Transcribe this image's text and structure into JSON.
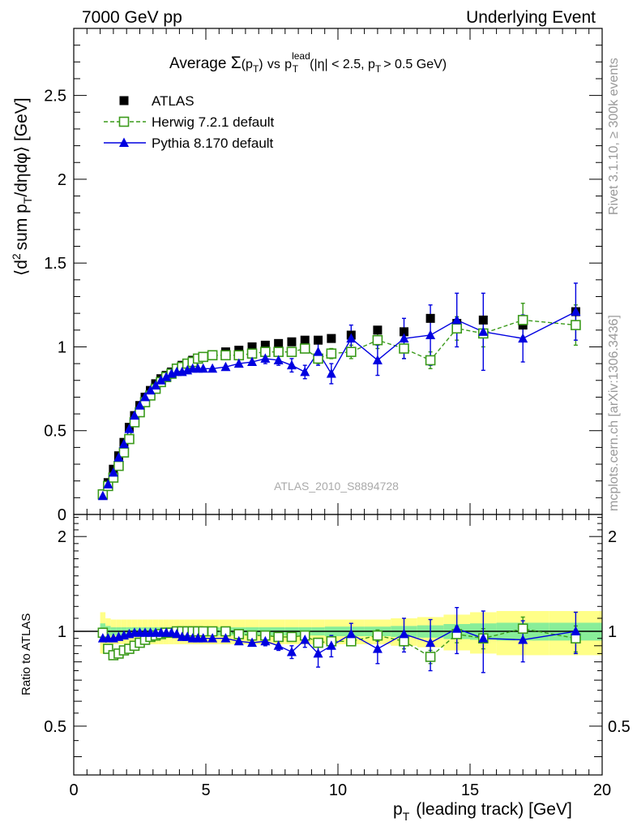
{
  "header": {
    "left": "7000 GeV pp",
    "right": "Underlying Event"
  },
  "side_labels": {
    "rivet": "Rivet 3.1.10, ≥ 300k events",
    "mcplots": "mcplots.cern.ch [arXiv:1306.3436]"
  },
  "watermark": "ATLAS_2010_S8894728",
  "colors": {
    "atlas": "#000000",
    "herwig": "#3a9a1a",
    "pythia": "#0000e0",
    "band_yellow": "#ffff88",
    "band_green": "#88ee99"
  },
  "chart_data": [
    {
      "type": "scatter",
      "title": "Average Σ(pT) vs pT lead (|η| < 2.5, pT > 0.5 GeV)",
      "title_parts": {
        "prefix": "Average",
        "sigma": "Σ",
        "sigma_arg_open": "(p",
        "sub_T": "T",
        "sigma_arg_close": ")",
        "vs": "vs",
        "p": "p",
        "sup_lead": "lead",
        "cut_open": "(|η| < 2.5, p",
        "cut_close": "> 0.5 GeV)"
      },
      "ylabel": "⟨d² sum pT/dηdφ⟩ [GeV]",
      "ylabel_parts": {
        "open": "⟨d",
        "sup_2": "2",
        "mid": "sum p",
        "sub_T": "T",
        "close": "/dηdφ⟩ [GeV]"
      },
      "xlim": [
        0,
        20
      ],
      "ylim": [
        0,
        2.9
      ],
      "yticks": [
        "0",
        "0.5",
        "1",
        "1.5",
        "2",
        "2.5"
      ],
      "legend_position": "top-left",
      "x": [
        1.1,
        1.3,
        1.5,
        1.7,
        1.9,
        2.1,
        2.3,
        2.5,
        2.7,
        2.9,
        3.1,
        3.3,
        3.5,
        3.7,
        3.9,
        4.1,
        4.3,
        4.5,
        4.7,
        4.9,
        5.25,
        5.75,
        6.25,
        6.75,
        7.25,
        7.75,
        8.25,
        8.75,
        9.25,
        9.75,
        10.5,
        11.5,
        12.5,
        13.5,
        14.5,
        15.5,
        17.0,
        19.0
      ],
      "series": [
        {
          "name": "ATLAS",
          "marker": "filled-square",
          "values": [
            0.12,
            0.19,
            0.27,
            0.35,
            0.43,
            0.52,
            0.59,
            0.65,
            0.7,
            0.74,
            0.78,
            0.81,
            0.83,
            0.85,
            0.87,
            0.89,
            0.9,
            0.92,
            0.93,
            0.94,
            0.95,
            0.97,
            0.98,
            1.0,
            1.01,
            1.02,
            1.03,
            1.04,
            1.04,
            1.05,
            1.07,
            1.1,
            1.09,
            1.17,
            1.14,
            1.16,
            1.13,
            1.21
          ]
        },
        {
          "name": "Herwig 7.2.1 default",
          "marker": "open-square",
          "line": "dashed",
          "values": [
            0.12,
            0.17,
            0.22,
            0.29,
            0.37,
            0.45,
            0.55,
            0.61,
            0.67,
            0.71,
            0.75,
            0.79,
            0.82,
            0.84,
            0.87,
            0.88,
            0.9,
            0.91,
            0.93,
            0.94,
            0.95,
            0.95,
            0.95,
            0.96,
            0.97,
            0.97,
            0.97,
            0.99,
            0.93,
            0.96,
            0.97,
            1.04,
            0.99,
            0.92,
            1.11,
            1.08,
            1.16,
            1.13
          ],
          "errors": [
            0,
            0,
            0,
            0,
            0,
            0,
            0,
            0,
            0,
            0,
            0,
            0,
            0,
            0,
            0,
            0,
            0,
            0,
            0,
            0,
            0,
            0,
            0,
            0,
            0,
            0,
            0,
            0,
            0.03,
            0.03,
            0.04,
            0.05,
            0.06,
            0.05,
            0.07,
            0.08,
            0.1,
            0.12
          ]
        },
        {
          "name": "Pythia 8.170 default",
          "marker": "filled-triangle",
          "line": "solid",
          "values": [
            0.11,
            0.18,
            0.25,
            0.34,
            0.42,
            0.51,
            0.59,
            0.65,
            0.7,
            0.74,
            0.77,
            0.8,
            0.82,
            0.84,
            0.85,
            0.85,
            0.86,
            0.87,
            0.87,
            0.87,
            0.87,
            0.88,
            0.9,
            0.91,
            0.93,
            0.92,
            0.89,
            0.85,
            0.97,
            0.84,
            1.05,
            0.92,
            1.05,
            1.07,
            1.16,
            1.09,
            1.05,
            1.21
          ],
          "errors": [
            0,
            0,
            0,
            0,
            0,
            0,
            0,
            0,
            0,
            0,
            0,
            0,
            0,
            0,
            0,
            0,
            0,
            0,
            0,
            0,
            0,
            0,
            0,
            0,
            0.03,
            0.03,
            0.04,
            0.04,
            0.08,
            0.06,
            0.08,
            0.09,
            0.12,
            0.18,
            0.16,
            0.23,
            0.14,
            0.17
          ]
        }
      ]
    },
    {
      "type": "scatter",
      "ylabel": "Ratio to ATLAS",
      "xlabel": "pT (leading track) [GeV]",
      "xlabel_parts": {
        "p": "p",
        "sub_T": "T",
        "rest": "(leading track) [GeV]"
      },
      "xlim": [
        0,
        20
      ],
      "ylim": [
        0.35,
        2.35
      ],
      "yscale": "log",
      "xticks": [
        "0",
        "5",
        "10",
        "15",
        "20"
      ],
      "yticks": [
        "0.5",
        "1",
        "2"
      ],
      "band_x_edges": [
        1.0,
        1.2,
        1.4,
        1.6,
        1.8,
        2.0,
        2.2,
        2.4,
        2.6,
        2.8,
        3.0,
        3.2,
        3.4,
        3.6,
        3.8,
        4.0,
        4.2,
        4.4,
        4.6,
        4.8,
        5.0,
        5.5,
        6.0,
        6.5,
        7.0,
        7.5,
        8.0,
        8.5,
        9.0,
        9.5,
        10.0,
        11.0,
        12.0,
        13.0,
        14.0,
        15.0,
        16.0,
        18.0,
        20.0
      ],
      "band_green_halfwidth": [
        0.06,
        0.04,
        0.03,
        0.03,
        0.03,
        0.03,
        0.03,
        0.03,
        0.03,
        0.03,
        0.03,
        0.03,
        0.03,
        0.03,
        0.03,
        0.03,
        0.03,
        0.03,
        0.03,
        0.03,
        0.03,
        0.03,
        0.03,
        0.03,
        0.03,
        0.03,
        0.03,
        0.03,
        0.03,
        0.035,
        0.035,
        0.035,
        0.04,
        0.045,
        0.055,
        0.06,
        0.065,
        0.065
      ],
      "band_yellow_halfwidth": [
        0.15,
        0.1,
        0.09,
        0.09,
        0.09,
        0.09,
        0.09,
        0.09,
        0.09,
        0.09,
        0.09,
        0.09,
        0.09,
        0.09,
        0.09,
        0.09,
        0.09,
        0.09,
        0.09,
        0.09,
        0.09,
        0.09,
        0.09,
        0.09,
        0.09,
        0.09,
        0.09,
        0.09,
        0.09,
        0.09,
        0.09,
        0.09,
        0.1,
        0.11,
        0.13,
        0.15,
        0.16,
        0.16
      ],
      "series": [
        {
          "name": "Herwig 7.2.1 default",
          "values": [
            0.99,
            0.88,
            0.84,
            0.85,
            0.87,
            0.88,
            0.9,
            0.92,
            0.94,
            0.96,
            0.97,
            0.98,
            0.99,
            0.99,
            1.0,
            1.0,
            1.0,
            1.0,
            1.0,
            1.0,
            1.0,
            1.0,
            0.98,
            0.97,
            0.97,
            0.96,
            0.96,
            0.97,
            0.92,
            0.93,
            0.93,
            0.97,
            0.93,
            0.83,
            0.98,
            0.95,
            1.02,
            0.95
          ],
          "errors": [
            0,
            0,
            0,
            0,
            0,
            0,
            0,
            0,
            0,
            0,
            0,
            0,
            0,
            0,
            0,
            0,
            0,
            0,
            0,
            0,
            0,
            0,
            0,
            0,
            0,
            0,
            0,
            0,
            0.03,
            0.03,
            0.03,
            0.04,
            0.05,
            0.04,
            0.06,
            0.07,
            0.09,
            0.09
          ]
        },
        {
          "name": "Pythia 8.170 default",
          "values": [
            0.95,
            0.95,
            0.95,
            0.96,
            0.97,
            0.98,
            0.99,
            0.99,
            0.99,
            0.99,
            0.99,
            0.99,
            0.99,
            0.99,
            0.98,
            0.96,
            0.96,
            0.95,
            0.95,
            0.95,
            0.95,
            0.95,
            0.93,
            0.92,
            0.93,
            0.9,
            0.86,
            0.94,
            0.85,
            0.9,
            0.98,
            0.88,
            0.98,
            0.92,
            1.02,
            0.95,
            0.94,
            1.0
          ],
          "errors": [
            0,
            0,
            0,
            0,
            0,
            0,
            0,
            0,
            0,
            0,
            0,
            0,
            0,
            0,
            0,
            0,
            0,
            0,
            0,
            0,
            0,
            0,
            0,
            0,
            0.03,
            0.03,
            0.04,
            0.05,
            0.08,
            0.07,
            0.08,
            0.09,
            0.12,
            0.17,
            0.17,
            0.21,
            0.14,
            0.15
          ]
        }
      ]
    }
  ]
}
